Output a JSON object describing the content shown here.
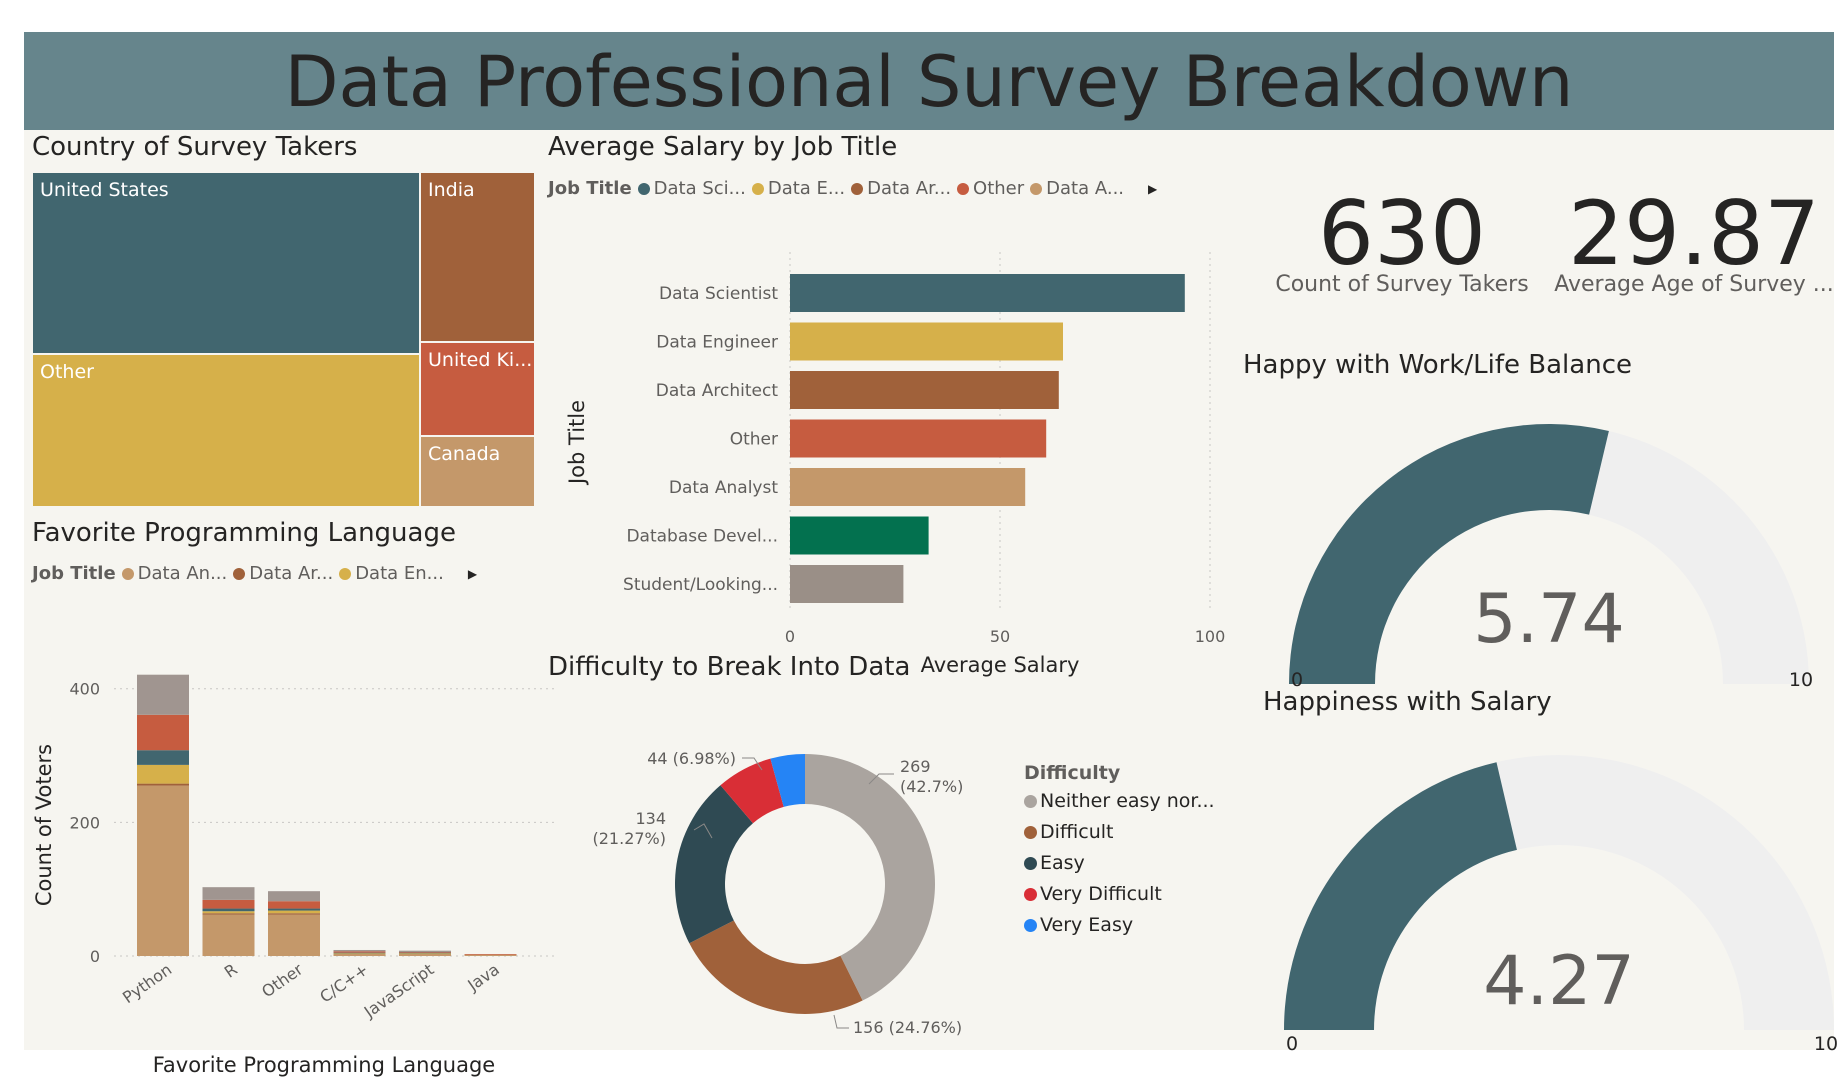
{
  "dashboard_title": "Data Professional Survey Breakdown",
  "colors": {
    "banner": "#66858c",
    "background": "#f6f5f0",
    "dark_teal": "#41666f",
    "gold": "#d6b04a",
    "brown": "#a0613a",
    "red_orange": "#c65c40",
    "tan": "#c4986a",
    "green": "#03714f",
    "gray": "#9a8f87",
    "gauge_track": "#efefef"
  },
  "treemap": {
    "title": "Country of Survey Takers",
    "cells": [
      {
        "label": "United States",
        "color": "#41666f"
      },
      {
        "label": "India",
        "color": "#a0613a"
      },
      {
        "label": "Other",
        "color": "#d6b04a"
      },
      {
        "label": "United Ki...",
        "color": "#c65c40"
      },
      {
        "label": "Canada",
        "color": "#c4986a"
      }
    ]
  },
  "salary_chart": {
    "title": "Average Salary by Job Title",
    "legend_title": "Job Title",
    "legend": [
      {
        "label": "Data Sci...",
        "color": "#41666f"
      },
      {
        "label": "Data E...",
        "color": "#d6b04a"
      },
      {
        "label": "Data Ar...",
        "color": "#a0613a"
      },
      {
        "label": "Other",
        "color": "#c65c40"
      },
      {
        "label": "Data A...",
        "color": "#c4986a"
      }
    ]
  },
  "language_chart": {
    "title": "Favorite Programming Language",
    "legend_title": "Job Title",
    "legend": [
      {
        "label": "Data An...",
        "color": "#c4986a"
      },
      {
        "label": "Data Ar...",
        "color": "#a0613a"
      },
      {
        "label": "Data En...",
        "color": "#d6b04a"
      }
    ]
  },
  "difficulty_chart": {
    "title": "Difficulty to Break Into Data",
    "legend_title": "Difficulty",
    "legend": [
      {
        "label": "Neither easy nor...",
        "color": "#aaa49f"
      },
      {
        "label": "Difficult",
        "color": "#a0613a"
      },
      {
        "label": "Easy",
        "color": "#2f4a53"
      },
      {
        "label": "Very Difficult",
        "color": "#d92e36"
      },
      {
        "label": "Very Easy",
        "color": "#2584f5"
      }
    ]
  },
  "kpis": [
    {
      "value": "630",
      "label": "Count of Survey Takers"
    },
    {
      "value": "29.87",
      "label": "Average Age of Survey ..."
    }
  ],
  "gauges": [
    {
      "title": "Happy with Work/Life Balance",
      "value": 5.74,
      "value_text": "5.74",
      "min_label": "0",
      "max_label": "10",
      "min": 0,
      "max": 10
    },
    {
      "title": "Happiness with Salary",
      "value": 4.27,
      "value_text": "4.27",
      "min_label": "0",
      "max_label": "10",
      "min": 0,
      "max": 10
    }
  ],
  "chart_data": [
    {
      "type": "treemap",
      "title": "Country of Survey Takers",
      "categories": [
        "United States",
        "Other",
        "India",
        "United Ki...",
        "Canada"
      ],
      "values": [
        262,
        235,
        75,
        37,
        21
      ]
    },
    {
      "type": "bar",
      "orientation": "horizontal",
      "title": "Average Salary by Job Title",
      "categories": [
        "Data Scientist",
        "Data Engineer",
        "Data Architect",
        "Other",
        "Data Analyst",
        "Database Devel...",
        "Student/Looking..."
      ],
      "values": [
        94,
        65,
        64,
        61,
        56,
        33,
        27
      ],
      "colors": [
        "#41666f",
        "#d6b04a",
        "#a0613a",
        "#c65c40",
        "#c4986a",
        "#03714f",
        "#9a8f87"
      ],
      "xlabel": "Average Salary",
      "ylabel": "Job Title",
      "xlim": [
        0,
        100
      ],
      "xticks": [
        "0",
        "50",
        "100"
      ],
      "grid": true
    },
    {
      "type": "bar",
      "stacked": true,
      "title": "Favorite Programming Language",
      "categories": [
        "Python",
        "R",
        "Other",
        "C/C++",
        "JavaScript",
        "Java"
      ],
      "series": [
        {
          "name": "Data An...",
          "color": "#c4986a",
          "values": [
            255,
            62,
            62,
            3,
            3,
            2
          ]
        },
        {
          "name": "Data Ar...",
          "color": "#a0613a",
          "values": [
            3,
            2,
            2,
            0,
            0,
            0
          ]
        },
        {
          "name": "Data En...",
          "color": "#d6b04a",
          "values": [
            28,
            3,
            4,
            1,
            1,
            0
          ]
        },
        {
          "name": "",
          "color": "#41666f",
          "values": [
            22,
            4,
            3,
            1,
            1,
            0
          ]
        },
        {
          "name": "",
          "color": "#c65c40",
          "values": [
            53,
            13,
            11,
            2,
            1,
            1
          ]
        },
        {
          "name": "",
          "color": "#a09590",
          "values": [
            60,
            19,
            15,
            2,
            2,
            0
          ]
        }
      ],
      "xlabel": "Favorite Programming Language",
      "ylabel": "Count of Voters",
      "ylim": [
        0,
        440
      ],
      "yticks": [
        "0",
        "200",
        "400"
      ],
      "grid": true
    },
    {
      "type": "pie",
      "donut": true,
      "title": "Difficulty to Break Into Data",
      "categories": [
        "Neither easy nor...",
        "Difficult",
        "Easy",
        "Very Difficult",
        "Very Easy"
      ],
      "values": [
        269,
        156,
        134,
        44,
        27
      ],
      "colors": [
        "#aaa49f",
        "#a0613a",
        "#2f4a53",
        "#d92e36",
        "#2584f5"
      ],
      "data_labels": [
        [
          "269",
          "(42.7%)"
        ],
        [
          "156 (24.76%)"
        ],
        [
          "134",
          "(21.27%)"
        ],
        [
          "44 (6.98%)"
        ]
      ]
    }
  ]
}
